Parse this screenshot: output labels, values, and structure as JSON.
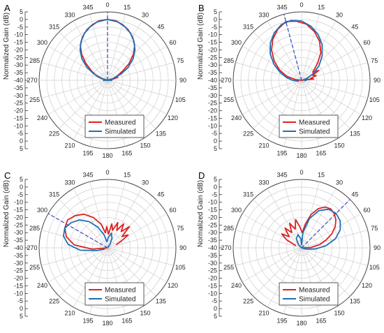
{
  "chart_data": [
    {
      "type": "polar-line",
      "panel": "A",
      "ylabel": "Normalized Gain (dB)",
      "r_ticks": [
        5,
        0,
        -5,
        -10,
        -15,
        -20,
        -25,
        -30,
        -35,
        -40
      ],
      "rlim": [
        -40,
        5
      ],
      "theta_ticks": [
        0,
        15,
        30,
        45,
        60,
        75,
        90,
        105,
        120,
        135,
        150,
        165,
        180,
        195,
        210,
        225,
        240,
        255,
        270,
        285,
        300,
        315,
        330,
        345
      ],
      "grid": true,
      "beam_direction_deg": 0,
      "legend_position": "bottom-right",
      "series": [
        {
          "name": "Measured",
          "color": "#dd2222",
          "theta": [
            -88,
            -75,
            -68,
            -60,
            -52,
            -45,
            -38,
            -30,
            -22,
            -15,
            -8,
            0,
            8,
            15,
            22,
            30,
            38,
            45,
            52,
            58,
            62,
            66,
            70,
            74,
            80,
            88
          ],
          "r": [
            -40,
            -36,
            -32,
            -28,
            -22,
            -16,
            -11,
            -7,
            -4,
            -2,
            -0.5,
            0,
            -0.5,
            -2,
            -4,
            -7,
            -11,
            -16,
            -22,
            -28,
            -31,
            -33,
            -35,
            -33,
            -37,
            -40
          ]
        },
        {
          "name": "Simulated",
          "color": "#1f6fb5",
          "theta": [
            -95,
            -88,
            -80,
            -72,
            -65,
            -58,
            -50,
            -42,
            -34,
            -26,
            -18,
            -10,
            0,
            10,
            18,
            26,
            34,
            42,
            50,
            58,
            65,
            72,
            80,
            88,
            95
          ],
          "r": [
            -37,
            -38,
            -40,
            -36,
            -30,
            -24,
            -18,
            -13,
            -9,
            -5.5,
            -3,
            -1,
            0,
            -1,
            -3,
            -5.5,
            -9,
            -13,
            -18,
            -24,
            -30,
            -36,
            -40,
            -38,
            -37
          ]
        }
      ]
    },
    {
      "type": "polar-line",
      "panel": "B",
      "ylabel": "Normalized Gain (dB)",
      "r_ticks": [
        5,
        0,
        -5,
        -10,
        -15,
        -20,
        -25,
        -30,
        -35,
        -40
      ],
      "rlim": [
        -40,
        5
      ],
      "theta_ticks": [
        0,
        15,
        30,
        45,
        60,
        75,
        90,
        105,
        120,
        135,
        150,
        165,
        180,
        195,
        210,
        225,
        240,
        255,
        270,
        285,
        300,
        315,
        330,
        345
      ],
      "grid": true,
      "beam_direction_deg": -15,
      "legend_position": "bottom-right",
      "series": [
        {
          "name": "Measured",
          "color": "#dd2222",
          "theta": [
            -95,
            -85,
            -75,
            -65,
            -55,
            -45,
            -35,
            -25,
            -15,
            -5,
            5,
            15,
            25,
            35,
            42,
            48,
            54,
            60,
            66,
            72,
            78,
            84,
            90
          ],
          "r": [
            -40,
            -36,
            -30,
            -24,
            -18,
            -12,
            -7,
            -3,
            0,
            -1,
            -3,
            -7,
            -12,
            -18,
            -24,
            -28,
            -31,
            -27,
            -32,
            -30,
            -34,
            -32,
            -40
          ]
        },
        {
          "name": "Simulated",
          "color": "#1f6fb5",
          "theta": [
            -110,
            -100,
            -90,
            -80,
            -70,
            -60,
            -50,
            -40,
            -30,
            -20,
            -10,
            0,
            10,
            20,
            30,
            40,
            50,
            60,
            70,
            80,
            90,
            100
          ],
          "r": [
            -38,
            -37,
            -34,
            -30,
            -25,
            -19,
            -13,
            -8,
            -4,
            -1,
            0,
            -1,
            -4,
            -8,
            -13,
            -19,
            -25,
            -31,
            -36,
            -39,
            -37,
            -38
          ]
        }
      ]
    },
    {
      "type": "polar-line",
      "panel": "C",
      "ylabel": "Normalized Gain (dB)",
      "r_ticks": [
        5,
        0,
        -5,
        -10,
        -15,
        -20,
        -25,
        -30,
        -35,
        -40
      ],
      "rlim": [
        -40,
        5
      ],
      "theta_ticks": [
        0,
        15,
        30,
        45,
        60,
        75,
        90,
        105,
        120,
        135,
        150,
        165,
        180,
        195,
        210,
        225,
        240,
        255,
        270,
        285,
        300,
        315,
        330,
        345
      ],
      "grid": true,
      "beam_direction_deg": -60,
      "legend_position": "bottom-right",
      "series": [
        {
          "name": "Measured",
          "color": "#dd2222",
          "theta": [
            -105,
            -95,
            -85,
            -75,
            -65,
            -55,
            -45,
            -35,
            -25,
            -15,
            -8,
            -2,
            4,
            10,
            16,
            22,
            28,
            34,
            40,
            46,
            52,
            58,
            64,
            70
          ],
          "r": [
            -40,
            -30,
            -18,
            -12,
            -9,
            -8,
            -10,
            -13,
            -18,
            -24,
            -30,
            -26,
            -31,
            -24,
            -28,
            -22,
            -27,
            -21,
            -26,
            -20,
            -28,
            -24,
            -30,
            -34
          ]
        },
        {
          "name": "Simulated",
          "color": "#1f6fb5",
          "theta": [
            -115,
            -105,
            -95,
            -85,
            -75,
            -65,
            -55,
            -45,
            -35,
            -25,
            -15,
            -5,
            5,
            15,
            25,
            35,
            45,
            55
          ],
          "r": [
            -38,
            -33,
            -22,
            -14,
            -10,
            -9,
            -11,
            -14,
            -19,
            -25,
            -31,
            -36,
            -33,
            -30,
            -33,
            -37,
            -40,
            -40
          ]
        }
      ]
    },
    {
      "type": "polar-line",
      "panel": "D",
      "ylabel": "Normalized Gain (dB)",
      "r_ticks": [
        5,
        0,
        -5,
        -10,
        -15,
        -20,
        -25,
        -30,
        -35,
        -40
      ],
      "rlim": [
        -40,
        5
      ],
      "theta_ticks": [
        0,
        15,
        30,
        45,
        60,
        75,
        90,
        105,
        120,
        135,
        150,
        165,
        180,
        195,
        210,
        225,
        240,
        255,
        270,
        285,
        300,
        315,
        330,
        345
      ],
      "grid": true,
      "beam_direction_deg": 45,
      "legend_position": "bottom-right",
      "series": [
        {
          "name": "Measured",
          "color": "#dd2222",
          "theta": [
            -70,
            -62,
            -55,
            -48,
            -40,
            -33,
            -26,
            -19,
            -12,
            -5,
            2,
            9,
            16,
            23,
            30,
            37,
            44,
            51,
            58,
            65,
            72,
            80,
            88,
            96
          ],
          "r": [
            -36,
            -29,
            -24,
            -29,
            -23,
            -28,
            -22,
            -27,
            -21,
            -26,
            -30,
            -24,
            -17,
            -12,
            -9,
            -8,
            -9,
            -11,
            -14,
            -18,
            -23,
            -28,
            -34,
            -40
          ]
        },
        {
          "name": "Simulated",
          "color": "#1f6fb5",
          "theta": [
            -60,
            -45,
            -30,
            -15,
            -5,
            0,
            5,
            15,
            25,
            35,
            45,
            55,
            65,
            75,
            85,
            95,
            105,
            115
          ],
          "r": [
            -40,
            -37,
            -33,
            -31,
            -34,
            -38,
            -30,
            -20,
            -13,
            -9,
            -8,
            -9,
            -12,
            -17,
            -24,
            -31,
            -37,
            -40
          ]
        }
      ]
    }
  ]
}
